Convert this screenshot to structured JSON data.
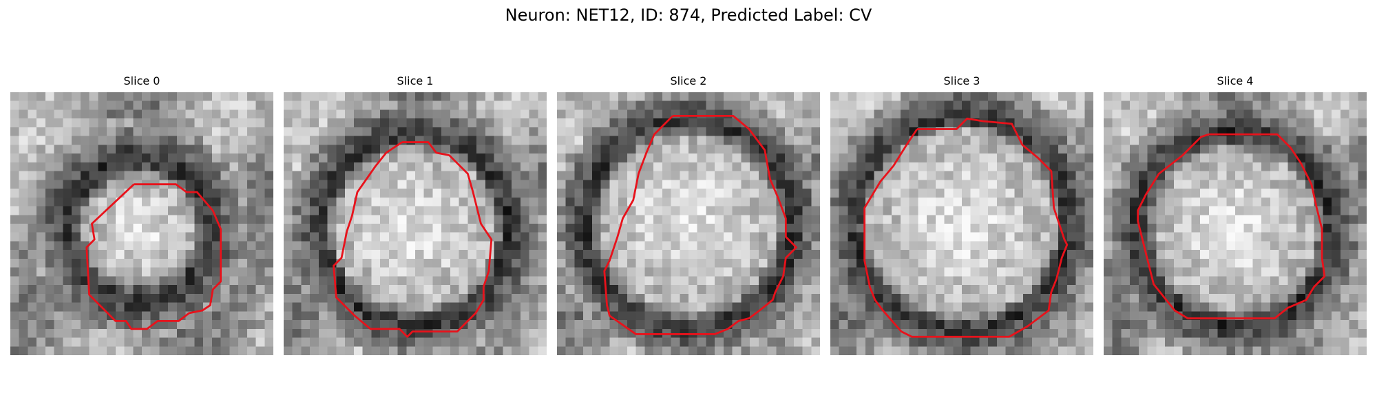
{
  "figure": {
    "title": "Neuron: NET12, ID: 874, Predicted Label: CV"
  },
  "colors": {
    "contour": "#e8121b",
    "background": "#ffffff"
  },
  "slices": [
    {
      "title": "Slice 0"
    },
    {
      "title": "Slice 1"
    },
    {
      "title": "Slice 2"
    },
    {
      "title": "Slice 3"
    },
    {
      "title": "Slice 4"
    }
  ]
}
